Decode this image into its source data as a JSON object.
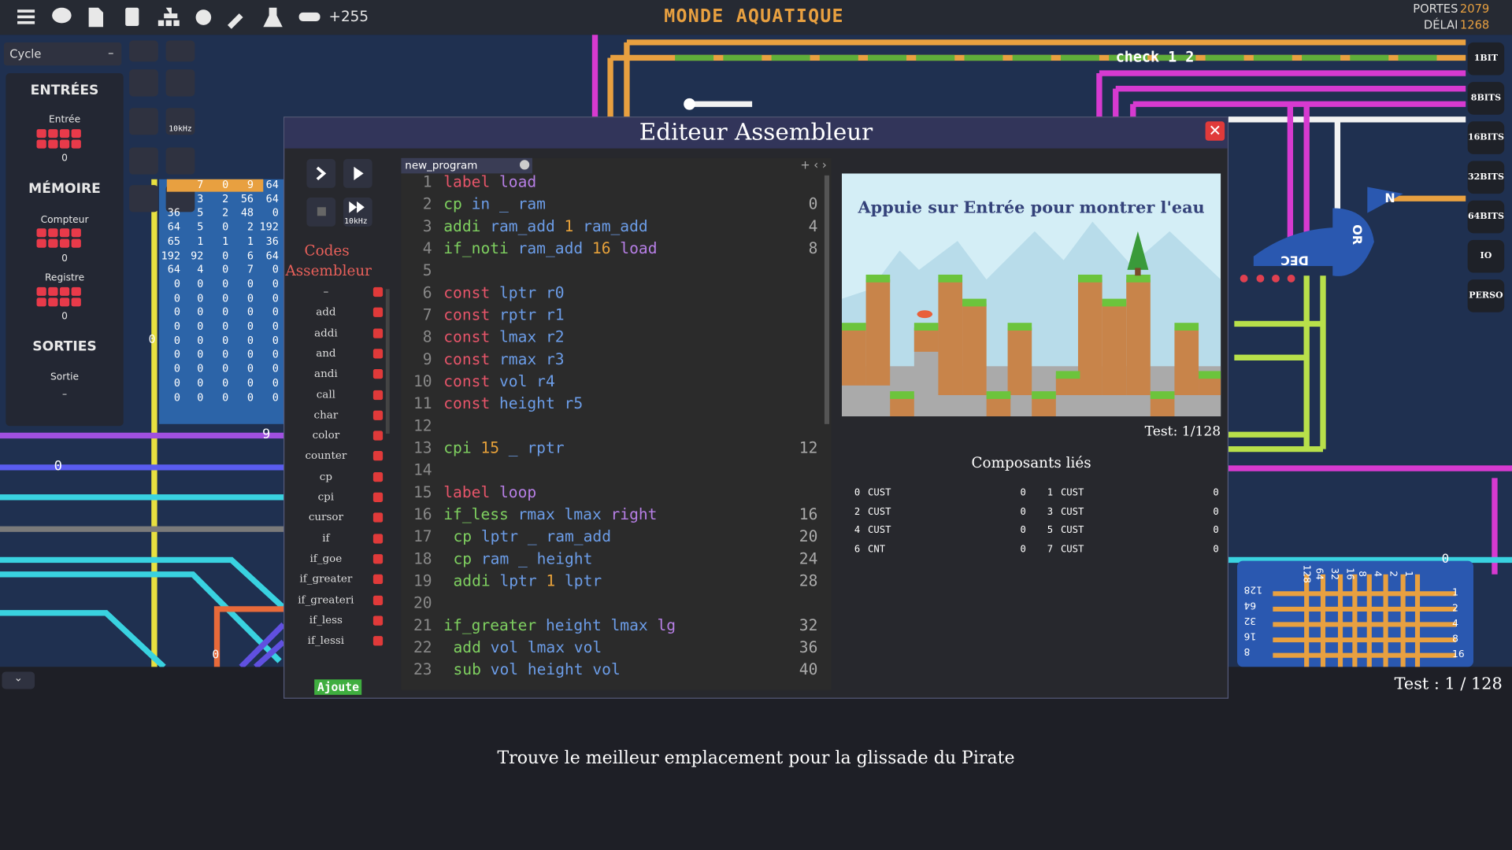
{
  "top_bar": {
    "counter": "+255",
    "title": "MONDE AQUATIQUE",
    "gates_label": "PORTES",
    "gates_value": "2079",
    "delay_label": "DÉLAI",
    "delay_value": "1268"
  },
  "left_panel": {
    "dropdown": "Cycle",
    "dropdown_icon": "–",
    "inputs_title": "ENTRÉES",
    "input_name": "Entrée",
    "input_value": "0",
    "memory_title": "MÉMOIRE",
    "counter_name": "Compteur",
    "counter_value": "0",
    "register_name": "Registre",
    "register_value": "0",
    "outputs_title": "SORTIES",
    "output_name": "Sortie",
    "output_value": "–"
  },
  "speed": "10kHz",
  "memory_rows": [
    [
      "7",
      "0",
      "9",
      "64"
    ],
    [
      "3",
      "2",
      "56",
      "64"
    ],
    [
      "36",
      "5",
      "2",
      "48",
      "0"
    ],
    [
      "64",
      "5",
      "0",
      "2",
      "192"
    ],
    [
      "65",
      "1",
      "1",
      "1",
      "36"
    ],
    [
      "192",
      "92",
      "0",
      "6",
      "64"
    ],
    [
      "64",
      "4",
      "0",
      "7",
      "0"
    ],
    [
      "0",
      "0",
      "0",
      "0",
      "0"
    ],
    [
      "0",
      "0",
      "0",
      "0",
      "0"
    ],
    [
      "0",
      "0",
      "0",
      "0",
      "0"
    ],
    [
      "0",
      "0",
      "0",
      "0",
      "0"
    ],
    [
      "0",
      "0",
      "0",
      "0",
      "0"
    ],
    [
      "0",
      "0",
      "0",
      "0",
      "0"
    ],
    [
      "0",
      "0",
      "0",
      "0",
      "0"
    ],
    [
      "0",
      "0",
      "0",
      "0",
      "0"
    ],
    [
      "0",
      "0",
      "0",
      "0",
      "0"
    ]
  ],
  "wire_labels": [
    "check 1 2",
    "9",
    "0",
    "0",
    "0",
    "0"
  ],
  "circuit_labels": {
    "dec": "DEC",
    "or": "OR",
    "n": "N",
    "bits_left": [
      "128",
      "64",
      "32",
      "16",
      "8"
    ],
    "bits_right": [
      "1",
      "2",
      "4",
      "8",
      "16"
    ],
    "bits_top": [
      "128",
      "64",
      "32",
      "16",
      "8",
      "4",
      "2",
      "1"
    ]
  },
  "bit_buttons": [
    "1BIT",
    "8BITS",
    "16BITS",
    "32BITS",
    "64BITS",
    "IO",
    "PERSO"
  ],
  "editor": {
    "title": "Editeur Assembleur",
    "speed": "10kHz",
    "sidebar_title": "Codes Assembleur",
    "opcodes": [
      "–",
      "add",
      "addi",
      "and",
      "andi",
      "call",
      "char",
      "color",
      "counter",
      "cp",
      "cpi",
      "cursor",
      "if",
      "if_goe",
      "if_greater",
      "if_greateri",
      "if_less",
      "if_lessi"
    ],
    "add_button": "Ajoute",
    "tab": "new_program",
    "lines": [
      {
        "number": 1,
        "code": [
          "label",
          "load"
        ]
      },
      {
        "number": 2,
        "code": [
          "cp",
          "in",
          "_",
          "ram"
        ],
        "address": 0
      },
      {
        "number": 3,
        "code": [
          "addi",
          "ram_add",
          "1",
          "ram_add"
        ],
        "address": 4
      },
      {
        "number": 4,
        "code": [
          "if_noti",
          "ram_add",
          "16",
          "load"
        ],
        "address": 8
      },
      {
        "number": 5,
        "code": []
      },
      {
        "number": 6,
        "code": [
          "const",
          "lptr",
          "r0"
        ]
      },
      {
        "number": 7,
        "code": [
          "const",
          "rptr",
          "r1"
        ]
      },
      {
        "number": 8,
        "code": [
          "const",
          "lmax",
          "r2"
        ]
      },
      {
        "number": 9,
        "code": [
          "const",
          "rmax",
          "r3"
        ]
      },
      {
        "number": 10,
        "code": [
          "const",
          "vol",
          "r4"
        ]
      },
      {
        "number": 11,
        "code": [
          "const",
          "height",
          "r5"
        ]
      },
      {
        "number": 12,
        "code": []
      },
      {
        "number": 13,
        "code": [
          "cpi",
          "15",
          "_",
          "rptr"
        ],
        "address": 12
      },
      {
        "number": 14,
        "code": []
      },
      {
        "number": 15,
        "code": [
          "label",
          "loop"
        ]
      },
      {
        "number": 16,
        "code": [
          "if_less",
          "rmax",
          "lmax",
          "right"
        ],
        "address": 16
      },
      {
        "number": 17,
        "code": [
          "cp",
          "lptr",
          "_",
          "ram_add"
        ],
        "address": 20,
        "indent": 1
      },
      {
        "number": 18,
        "code": [
          "cp",
          "ram",
          "_",
          "height"
        ],
        "address": 24,
        "indent": 1
      },
      {
        "number": 19,
        "code": [
          "addi",
          "lptr",
          "1",
          "lptr"
        ],
        "address": 28,
        "indent": 1
      },
      {
        "number": 20,
        "code": []
      },
      {
        "number": 21,
        "code": [
          "if_greater",
          "height",
          "lmax",
          "lg"
        ],
        "address": 32
      },
      {
        "number": 22,
        "code": [
          "add",
          "vol",
          "lmax",
          "vol"
        ],
        "address": 36,
        "indent": 1
      },
      {
        "number": 23,
        "code": [
          "sub",
          "vol",
          "height",
          "vol"
        ],
        "address": 40,
        "indent": 1
      }
    ],
    "preview_text": "Appuie sur Entrée pour montrer l'eau",
    "test": "Test: 1/128",
    "components_title": "Composants liés",
    "components": [
      {
        "index": 0,
        "name": "CUST",
        "value": 0
      },
      {
        "index": 1,
        "name": "CUST",
        "value": 0
      },
      {
        "index": 2,
        "name": "CUST",
        "value": 0
      },
      {
        "index": 3,
        "name": "CUST",
        "value": 0
      },
      {
        "index": 4,
        "name": "CUST",
        "value": 0
      },
      {
        "index": 5,
        "name": "CUST",
        "value": 0
      },
      {
        "index": 6,
        "name": "CNT",
        "value": 0
      },
      {
        "index": 7,
        "name": "CUST",
        "value": 0
      }
    ]
  },
  "bottom": {
    "test": "Test : 1 / 128",
    "message": "Trouve le meilleur emplacement pour la glissade du Pirate"
  }
}
